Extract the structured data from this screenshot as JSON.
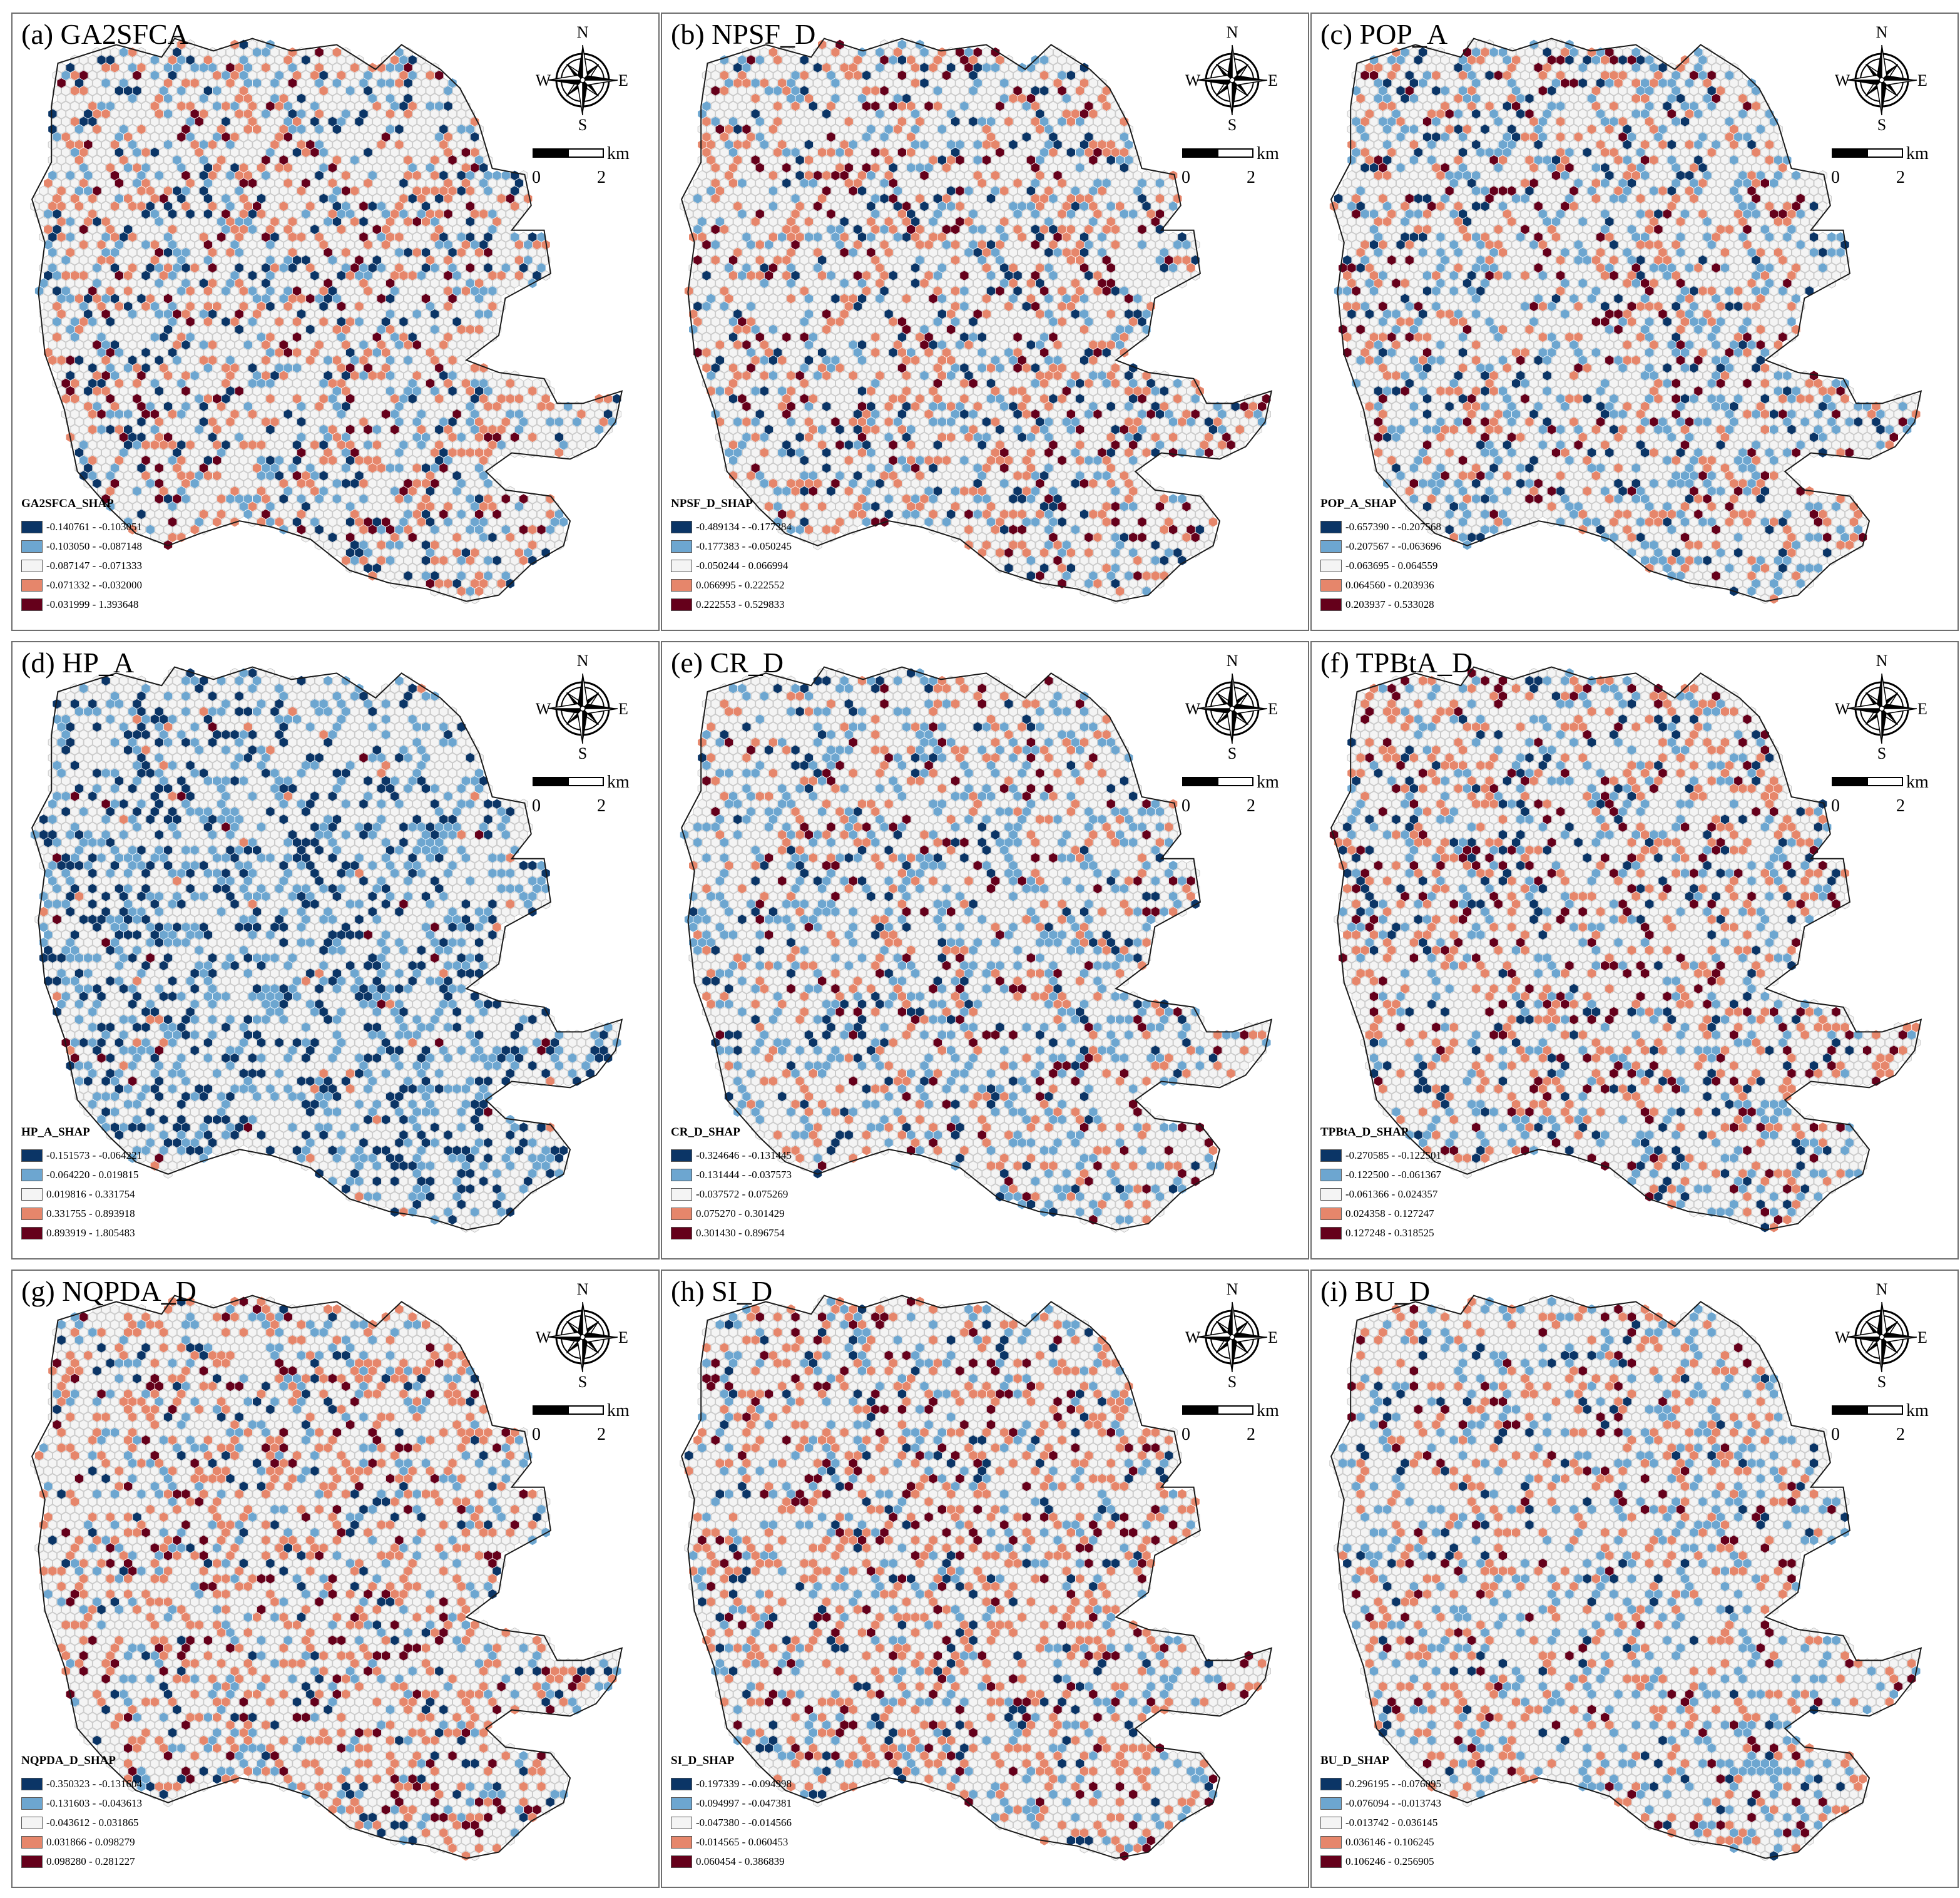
{
  "colors": {
    "dark_blue": "#0b3566",
    "light_blue": "#6da6d0",
    "neutral": "#f4f4f4",
    "salmon": "#e6866b",
    "dark_red": "#65001b"
  },
  "compass": {
    "n": "N",
    "s": "S",
    "e": "E",
    "w": "W"
  },
  "scale": {
    "unit": "km",
    "start": "0",
    "end": "2"
  },
  "panels": [
    {
      "title": "(a) GA2SFCA",
      "legend_title": "GA2SFCA_SHAP",
      "classes": [
        "-0.140761 - -0.103051",
        "-0.103050 - -0.087148",
        "-0.087147 - -0.071333",
        "-0.071332 - -0.032000",
        "-0.031999 - 1.393648"
      ],
      "shares": [
        0.06,
        0.13,
        0.63,
        0.14,
        0.04
      ]
    },
    {
      "title": "(b) NPSF_D",
      "legend_title": "NPSF_D_SHAP",
      "classes": [
        "-0.489134 - -0.177384",
        "-0.177383 - -0.050245",
        "-0.050244 - 0.066994",
        "0.066995 - 0.222552",
        "0.222553 - 0.529833"
      ],
      "shares": [
        0.06,
        0.12,
        0.63,
        0.14,
        0.05
      ]
    },
    {
      "title": "(c) POP_A",
      "legend_title": "POP_A_SHAP",
      "classes": [
        "-0.657390 - -0.207568",
        "-0.207567 - -0.063696",
        "-0.063695 - 0.064559",
        "0.064560 - 0.203936",
        "0.203937 - 0.533028"
      ],
      "shares": [
        0.05,
        0.16,
        0.62,
        0.13,
        0.04
      ]
    },
    {
      "title": "(d) HP_A",
      "legend_title": "HP_A_SHAP",
      "classes": [
        "-0.151573 - -0.064221",
        "-0.064220 - 0.019815",
        "0.019816 - 0.331754",
        "0.331755 - 0.893918",
        "0.893919 - 1.805483"
      ],
      "shares": [
        0.14,
        0.22,
        0.61,
        0.02,
        0.01
      ]
    },
    {
      "title": "(e) CR_D",
      "legend_title": "CR_D_SHAP",
      "classes": [
        "-0.324646 - -0.131445",
        "-0.131444 - -0.037573",
        "-0.037572 - 0.075269",
        "0.075270 - 0.301429",
        "0.301430 - 0.896754"
      ],
      "shares": [
        0.05,
        0.18,
        0.63,
        0.1,
        0.04
      ]
    },
    {
      "title": "(f) TPBtA_D",
      "legend_title": "TPBtA_D_SHAP",
      "classes": [
        "-0.270585 - -0.122501",
        "-0.122500 - -0.061367",
        "-0.061366 - 0.024357",
        "0.024358 - 0.127247",
        "0.127248 - 0.318525"
      ],
      "shares": [
        0.06,
        0.12,
        0.62,
        0.14,
        0.06
      ]
    },
    {
      "title": "(g) NQPDA_D",
      "legend_title": "NQPDA_D_SHAP",
      "classes": [
        "-0.350323 - -0.131604",
        "-0.131603 - -0.043613",
        "-0.043612 - 0.031865",
        "0.031866 - 0.098279",
        "0.098280 - 0.281227"
      ],
      "shares": [
        0.04,
        0.1,
        0.64,
        0.17,
        0.05
      ]
    },
    {
      "title": "(h) SI_D",
      "legend_title": "SI_D_SHAP",
      "classes": [
        "-0.197339 - -0.094998",
        "-0.094997 - -0.047381",
        "-0.047380 - -0.014566",
        "-0.014565 - 0.060453",
        "0.060454 - 0.386839"
      ],
      "shares": [
        0.05,
        0.11,
        0.62,
        0.16,
        0.06
      ]
    },
    {
      "title": "(i) BU_D",
      "legend_title": "BU_D_SHAP",
      "classes": [
        "-0.296195 - -0.076095",
        "-0.076094 - -0.013743",
        "-0.013742 - 0.036145",
        "0.036146 - 0.106245",
        "0.106246 - 0.256905"
      ],
      "shares": [
        0.03,
        0.15,
        0.66,
        0.12,
        0.04
      ]
    }
  ]
}
